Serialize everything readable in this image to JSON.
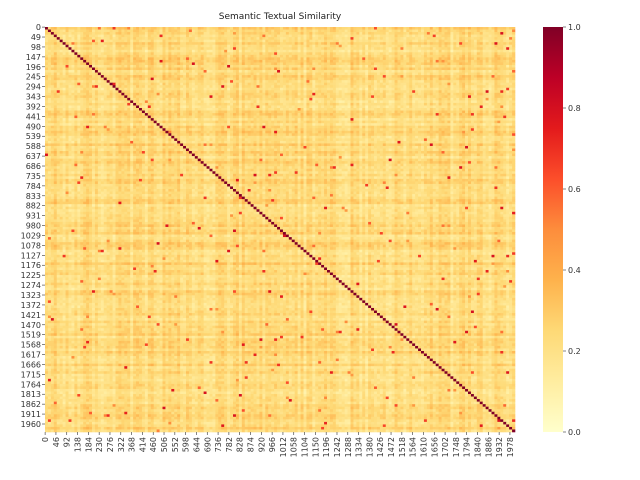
{
  "chart_data": {
    "type": "heatmap",
    "title": "Semantic Textual Similarity",
    "xlabel": "",
    "ylabel": "",
    "matrix_size": 2000,
    "x_tick_labels": [
      "0",
      "46",
      "92",
      "138",
      "184",
      "230",
      "276",
      "322",
      "368",
      "414",
      "460",
      "506",
      "552",
      "598",
      "644",
      "690",
      "736",
      "782",
      "828",
      "874",
      "920",
      "966",
      "1012",
      "1058",
      "1104",
      "1150",
      "1196",
      "1242",
      "1288",
      "1334",
      "1380",
      "1426",
      "1472",
      "1518",
      "1564",
      "1610",
      "1656",
      "1702",
      "1748",
      "1794",
      "1840",
      "1886",
      "1932",
      "1978"
    ],
    "y_tick_labels": [
      "0",
      "49",
      "98",
      "147",
      "196",
      "245",
      "294",
      "343",
      "392",
      "441",
      "490",
      "539",
      "588",
      "637",
      "686",
      "735",
      "784",
      "833",
      "882",
      "931",
      "980",
      "1029",
      "1078",
      "1127",
      "1176",
      "1225",
      "1274",
      "1323",
      "1372",
      "1421",
      "1470",
      "1519",
      "1568",
      "1617",
      "1666",
      "1715",
      "1764",
      "1813",
      "1862",
      "1911",
      "1960"
    ],
    "value_range": [
      0.0,
      1.0
    ],
    "typical_value_range": [
      0.1,
      0.35
    ],
    "diagonal_value": 1.0,
    "colorbar": {
      "colormap": "YlOrRd",
      "ticks": [
        "0.0",
        "0.2",
        "0.4",
        "0.6",
        "0.8",
        "1.0"
      ],
      "colors": [
        "#ffffcc",
        "#ffeda0",
        "#fed976",
        "#feb24c",
        "#fd8d3c",
        "#fc4e2a",
        "#e31a1c",
        "#bd0026",
        "#800026"
      ]
    },
    "grid": false,
    "legend": "colorbar-right"
  }
}
